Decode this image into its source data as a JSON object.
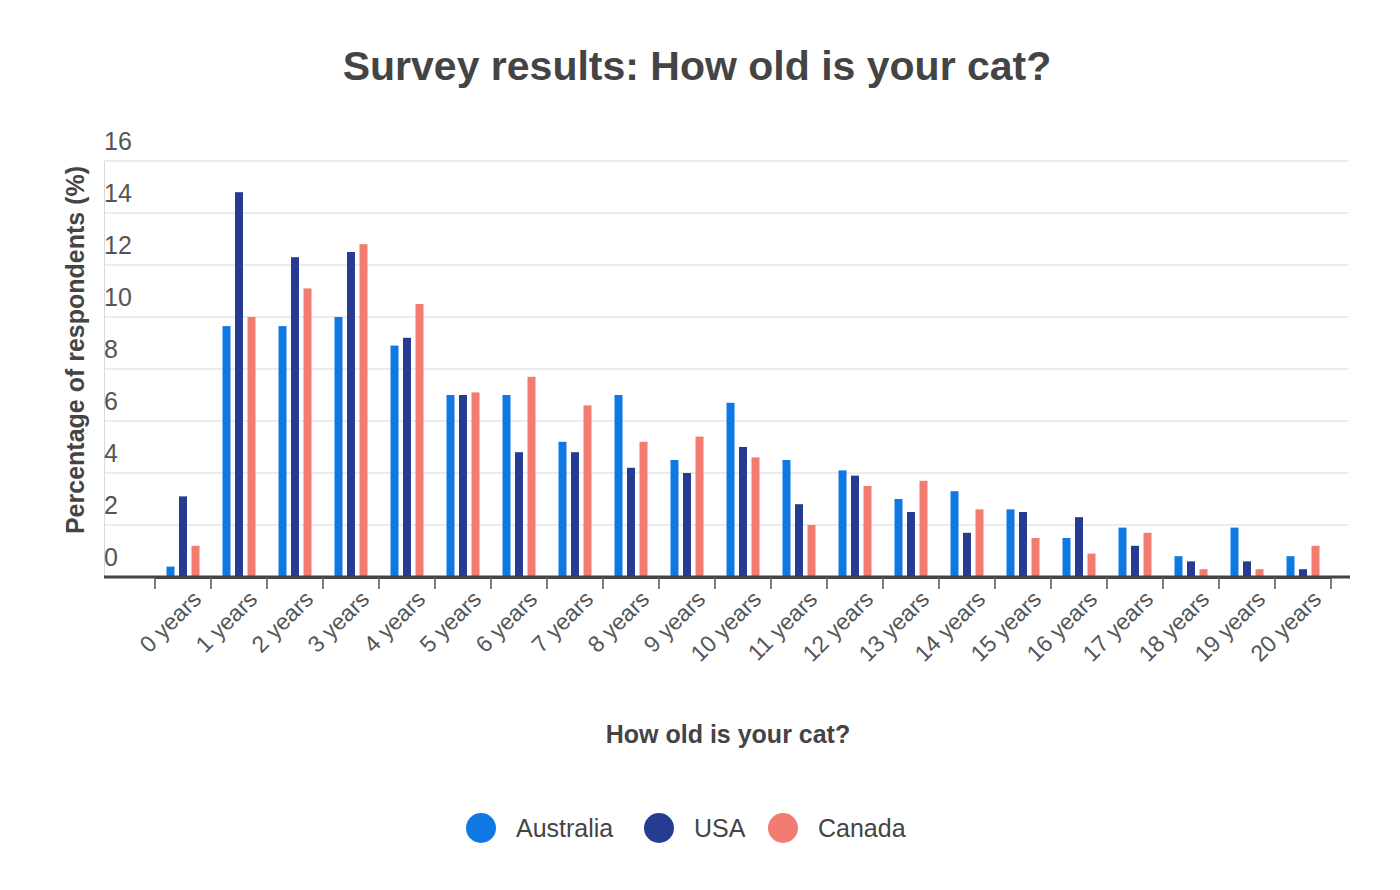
{
  "chart_data": {
    "type": "bar",
    "title": "Survey results: How old is your cat?",
    "x_label": "How old is your cat?",
    "y_label": "Percentage of respondents (%)",
    "categories": [
      "0 years",
      "1 years",
      "2 years",
      "3 years",
      "4 years",
      "5 years",
      "6 years",
      "7 years",
      "8 years",
      "9 years",
      "10 years",
      "11 years",
      "12 years",
      "13 years",
      "14 years",
      "15 years",
      "16 years",
      "17 years",
      "18 years",
      "19 years",
      "20 years"
    ],
    "series": [
      {
        "name": "Australia",
        "color": "#0f78e3",
        "values": [
          0.4,
          9.65,
          9.65,
          10.0,
          8.9,
          7.0,
          7.0,
          5.2,
          7.0,
          4.5,
          6.7,
          4.5,
          4.1,
          3.0,
          3.3,
          2.6,
          1.5,
          1.9,
          0.8,
          1.9,
          0.8
        ]
      },
      {
        "name": "USA",
        "color": "#263b92",
        "values": [
          3.1,
          14.8,
          12.3,
          12.5,
          9.2,
          7.0,
          4.8,
          4.8,
          4.2,
          4.0,
          5.0,
          2.8,
          3.9,
          2.5,
          1.7,
          2.5,
          2.3,
          1.2,
          0.6,
          0.6,
          0.3
        ]
      },
      {
        "name": "Canada",
        "color": "#f27c72",
        "values": [
          1.2,
          10.0,
          11.1,
          12.8,
          10.5,
          7.1,
          7.7,
          6.6,
          5.2,
          5.4,
          4.6,
          2.0,
          3.5,
          3.7,
          2.6,
          1.5,
          0.9,
          1.7,
          0.3,
          0.3,
          1.2
        ]
      }
    ],
    "ylim": [
      0,
      16
    ],
    "yticks": [
      0,
      2,
      4,
      6,
      8,
      10,
      12,
      14,
      16
    ],
    "grid": true,
    "legend": "bottom"
  }
}
